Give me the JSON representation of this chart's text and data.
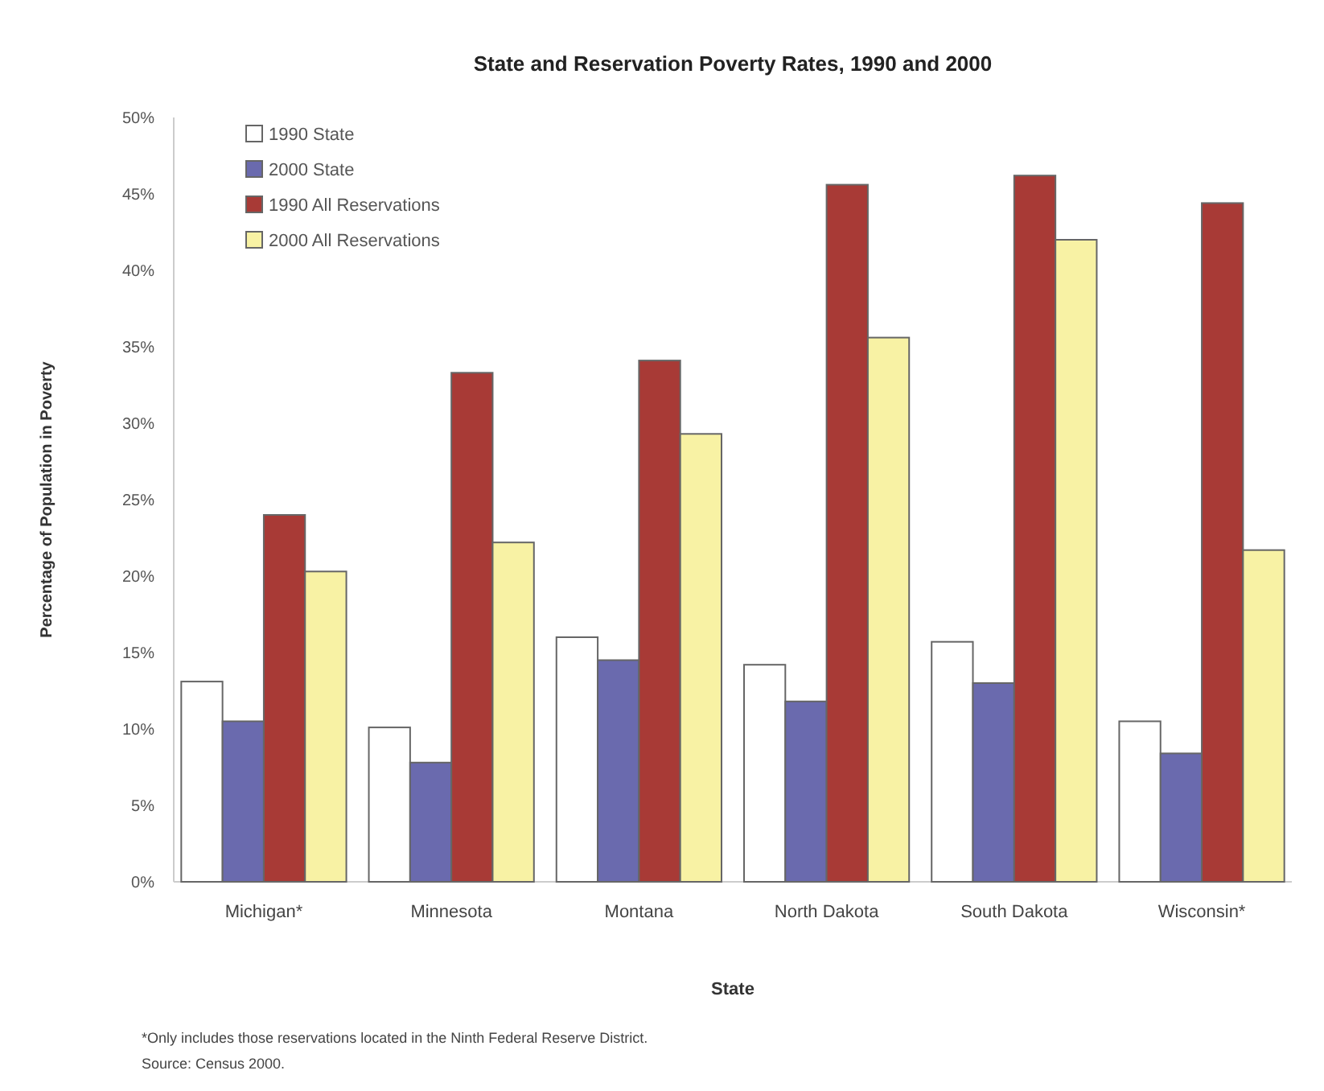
{
  "chart_data": {
    "type": "bar",
    "title": "State and Reservation Poverty Rates, 1990 and 2000",
    "xlabel": "State",
    "ylabel": "Percentage of Population in Poverty",
    "categories": [
      "Michigan*",
      "Minnesota",
      "Montana",
      "North Dakota",
      "South Dakota",
      "Wisconsin*"
    ],
    "series": [
      {
        "name": "1990 State",
        "color": "#ffffff",
        "values": [
          13.1,
          10.1,
          16.0,
          14.2,
          15.7,
          10.5
        ]
      },
      {
        "name": "2000 State",
        "color": "#6a6aae",
        "values": [
          10.5,
          7.8,
          14.5,
          11.8,
          13.0,
          8.4
        ]
      },
      {
        "name": "1990 All Reservations",
        "color": "#a83a36",
        "values": [
          24.0,
          33.3,
          34.1,
          45.6,
          46.2,
          44.4
        ]
      },
      {
        "name": "2000 All Reservations",
        "color": "#f8f2a4",
        "values": [
          20.3,
          22.2,
          29.3,
          35.6,
          42.0,
          21.7
        ]
      }
    ],
    "ylim": [
      0,
      50
    ],
    "yticks": [
      {
        "value": 0,
        "label": "0%"
      },
      {
        "value": 5,
        "label": "5%"
      },
      {
        "value": 10,
        "label": "10%"
      },
      {
        "value": 15,
        "label": "15%"
      },
      {
        "value": 20,
        "label": "20%"
      },
      {
        "value": 25,
        "label": "25%"
      },
      {
        "value": 30,
        "label": "30%"
      },
      {
        "value": 35,
        "label": "35%"
      },
      {
        "value": 40,
        "label": "40%"
      },
      {
        "value": 45,
        "label": "45%"
      },
      {
        "value": 50,
        "label": "50%"
      }
    ],
    "legend": "top left",
    "annotations": [
      "*Only includes those reservations located in the Ninth Federal Reserve District.",
      "Source: Census 2000."
    ]
  }
}
